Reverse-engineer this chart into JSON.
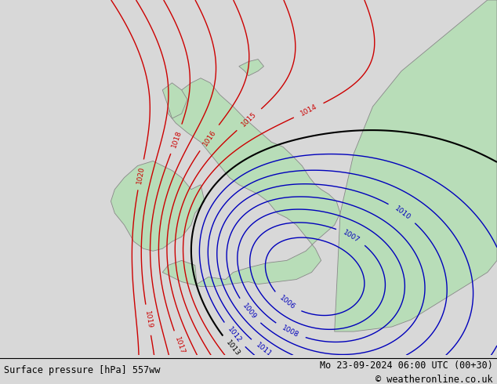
{
  "title_left": "Surface pressure [hPa] 557ww",
  "title_right": "Mo 23-09-2024 06:00 UTC (00+30)",
  "title_right2": "© weatheronline.co.uk",
  "bg_color": "#d8d8d8",
  "land_color": "#b8ddb8",
  "border_color": "#888888",
  "blue_color": "#0000bb",
  "red_color": "#cc0000",
  "black_color": "#000000",
  "lon_min": -16,
  "lon_max": 10,
  "lat_min": 47,
  "lat_max": 62,
  "footer_fontsize": 8.5
}
